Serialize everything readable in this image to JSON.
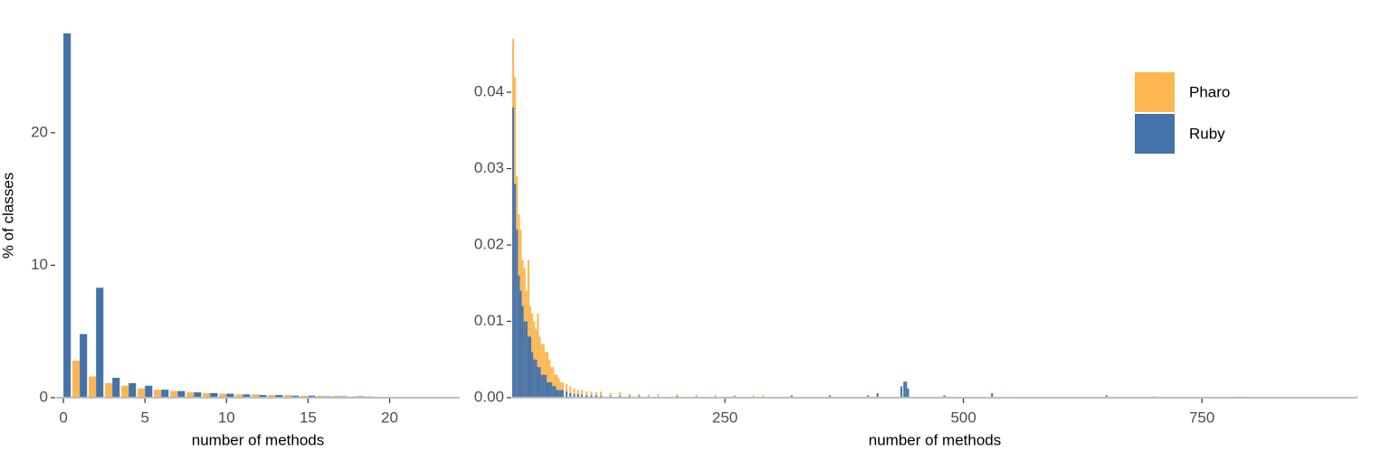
{
  "chart_data": [
    {
      "type": "bar",
      "position": "dodge",
      "x": [
        0,
        1,
        2,
        3,
        4,
        5,
        6,
        7,
        8,
        9,
        10,
        11,
        12,
        13,
        14,
        15,
        16,
        17,
        18,
        19,
        20,
        21,
        22,
        23,
        24
      ],
      "series": [
        {
          "name": "Pharo",
          "color": "#fdb651",
          "values": [
            0,
            2.8,
            1.6,
            1.1,
            0.9,
            0.7,
            0.6,
            0.5,
            0.4,
            0.35,
            0.3,
            0.25,
            0.25,
            0.2,
            0.2,
            0.15,
            0.15,
            0.15,
            0.1,
            0.1,
            0.05,
            0.05,
            0.05,
            0.05,
            0.05
          ]
        },
        {
          "name": "Ruby",
          "color": "#4472aa",
          "values": [
            28,
            4.8,
            8.3,
            1.5,
            1.1,
            0.9,
            0.6,
            0.5,
            0.4,
            0.35,
            0.3,
            0.25,
            0.2,
            0.2,
            0.15,
            0.15,
            0.1,
            0.1,
            0.1,
            0.05,
            0.05,
            0.05,
            0.05,
            0.05,
            0.05
          ]
        }
      ],
      "xlabel": "number of methods",
      "ylabel": "% of classes",
      "xlim": [
        -0.45,
        24.3
      ],
      "ylim": [
        0,
        27.5
      ],
      "xticks": [
        0,
        5,
        10,
        15,
        20
      ],
      "yticks": [
        0,
        10,
        20
      ]
    },
    {
      "type": "bar",
      "position": "identity",
      "x": [
        28,
        30,
        32,
        34,
        36,
        38,
        40,
        42,
        44,
        46,
        48,
        50,
        52,
        54,
        56,
        58,
        60,
        62,
        64,
        66,
        68,
        70,
        72,
        74,
        76,
        78,
        80,
        84,
        88,
        92,
        96,
        100,
        105,
        110,
        115,
        120,
        130,
        140,
        150,
        160,
        170,
        180,
        200,
        220,
        240,
        260,
        280,
        290,
        320,
        360,
        400,
        410,
        435,
        438,
        440,
        442,
        480,
        530,
        650,
        700,
        790,
        913
      ],
      "series": [
        {
          "name": "Pharo",
          "color": "#fdb651",
          "values": [
            0.047,
            0.042,
            0.029,
            0.024,
            0.022,
            0.018,
            0.017,
            0.014,
            0.018,
            0.012,
            0.011,
            0.01,
            0.009,
            0.011,
            0.008,
            0.007,
            0.007,
            0.006,
            0.006,
            0.005,
            0.004,
            0.004,
            0.003,
            0.003,
            0.0025,
            0.002,
            0.002,
            0.0018,
            0.0015,
            0.0012,
            0.001,
            0.001,
            0.0008,
            0.0008,
            0.0007,
            0.0008,
            0.0006,
            0.0007,
            0.0005,
            0.0005,
            0.0004,
            0.0005,
            0.0005,
            0.0004,
            0.0004,
            0.0003,
            0.0003,
            0.0004,
            0.0002,
            null,
            0.0002,
            null,
            0.0003,
            null,
            null,
            null,
            0.0002,
            null,
            0.0002,
            0.0002,
            0.0002,
            0.0003
          ]
        },
        {
          "name": "Ruby",
          "color": "#4472aa",
          "values": [
            0.038,
            0.028,
            0.022,
            0.016,
            0.014,
            0.012,
            0.01,
            0.01,
            0.008,
            0.008,
            0.006,
            0.005,
            0.005,
            0.004,
            0.004,
            0.003,
            0.003,
            0.003,
            0.002,
            0.002,
            0.002,
            0.0015,
            0.0015,
            0.001,
            0.001,
            0.001,
            0.001,
            0.0008,
            0.0006,
            0.0005,
            0.0005,
            0.0004,
            0.0003,
            0.0003,
            0.0003,
            0.0002,
            0.0002,
            0.0002,
            0.0002,
            0.0002,
            null,
            null,
            0.0002,
            null,
            null,
            0.0002,
            null,
            null,
            0.0003,
            0.0003,
            0.0003,
            0.0006,
            0.0015,
            0.0021,
            0.0021,
            0.0012,
            0.0003,
            0.0006,
            0.0003,
            null,
            null,
            null
          ]
        }
      ],
      "xlabel": "number of methods",
      "xlim": [
        27,
        913
      ],
      "ylim": [
        0,
        0.0477
      ],
      "xticks": [
        250,
        500,
        750
      ],
      "yticks": [
        {
          "value": 0,
          "label": "0.00"
        },
        0.01,
        0.02,
        0.03,
        0.04
      ],
      "legend": "top-right"
    }
  ]
}
